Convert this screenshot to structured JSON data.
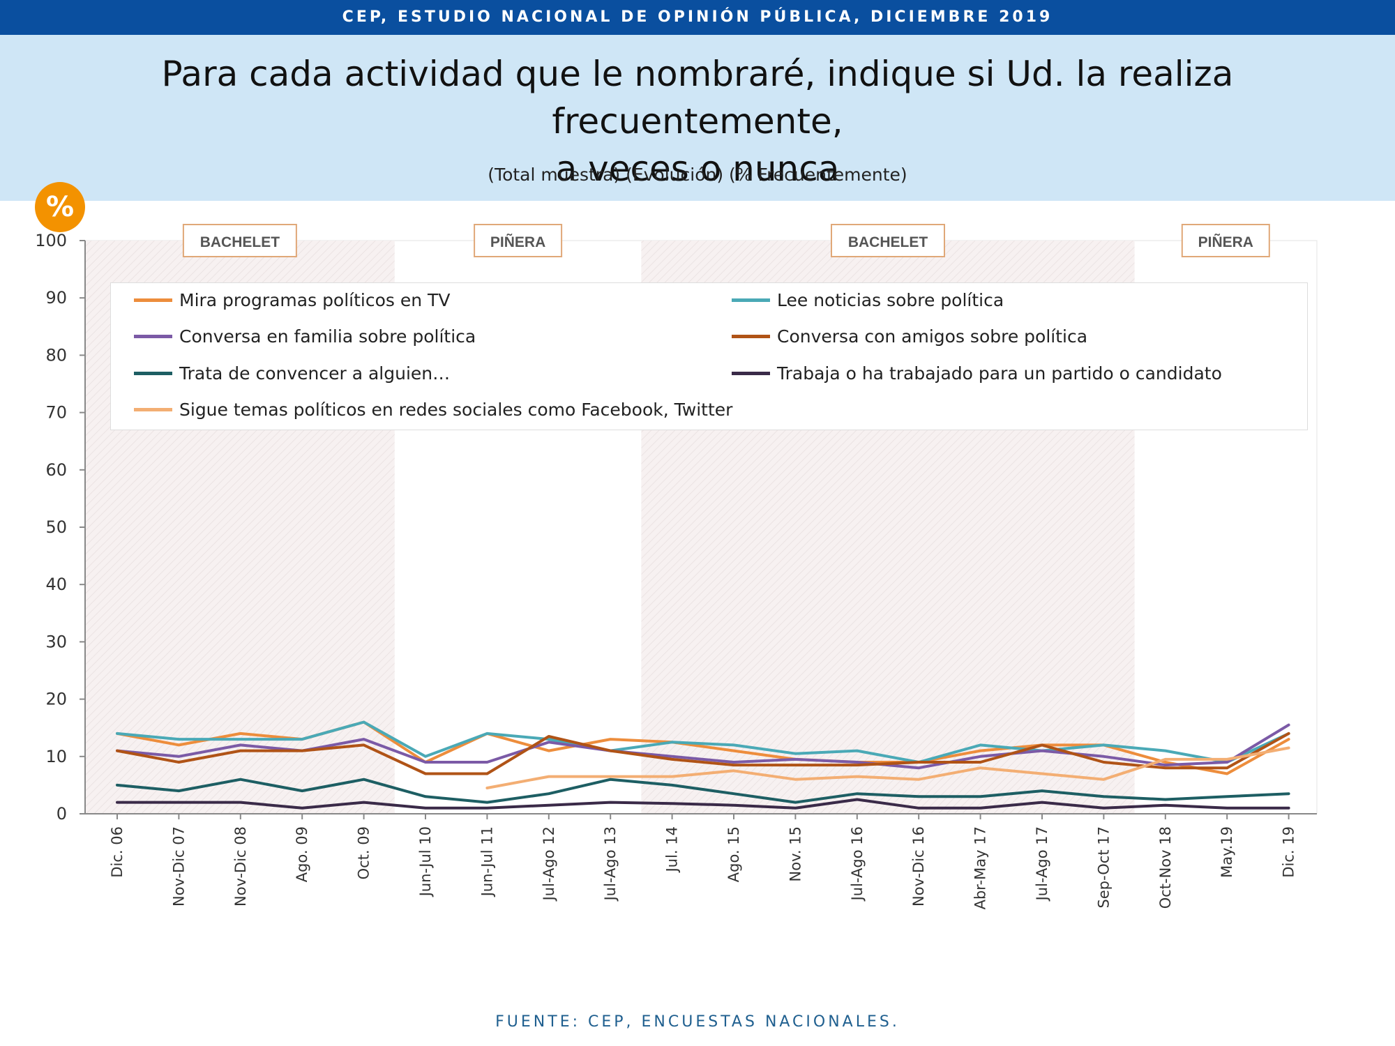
{
  "header": {
    "banner": "CEP, ESTUDIO NACIONAL DE OPINIÓN PÚBLICA, DICIEMBRE 2019",
    "title_line1": "Para cada actividad que le nombraré, indique si Ud. la realiza frecuentemente,",
    "title_line2": "a veces o nunca",
    "subtitle": "(Total muestra) (Evolución) (% Frecuentemente)",
    "badge": "%"
  },
  "footer": {
    "source": "FUENTE: CEP, ENCUESTAS NACIONALES."
  },
  "chart_data": {
    "type": "line",
    "title": "Para cada actividad que le nombraré, indique si Ud. la realiza frecuentemente, a veces o nunca",
    "subtitle": "(Total muestra) (Evolución) (% Frecuentemente)",
    "ylim": [
      0,
      100
    ],
    "yticks": [
      0,
      10,
      20,
      30,
      40,
      50,
      60,
      70,
      80,
      90,
      100
    ],
    "grid": false,
    "legend_position": "top",
    "categories": [
      "Dic. 06",
      "Nov-Dic 07",
      "Nov-Dic 08",
      "Ago. 09",
      "Oct. 09",
      "Jun-Jul 10",
      "Jun-Jul 11",
      "Jul-Ago 12",
      "Jul-Ago 13",
      "Jul. 14",
      "Ago. 15",
      "Nov. 15",
      "Jul-Ago 16",
      "Nov-Dic 16",
      "Abr-May 17",
      "Jul-Ago 17",
      "Sep-Oct 17",
      "Oct-Nov 18",
      "May.19",
      "Dic. 19"
    ],
    "periods": [
      {
        "label": "BACHELET",
        "from": 0,
        "to": 4,
        "shaded": true
      },
      {
        "label": "PIÑERA",
        "from": 5,
        "to": 8,
        "shaded": false
      },
      {
        "label": "BACHELET",
        "from": 9,
        "to": 16,
        "shaded": true
      },
      {
        "label": "PIÑERA",
        "from": 17,
        "to": 19,
        "shaded": false
      }
    ],
    "series": [
      {
        "name": "Mira programas políticos en TV",
        "color": "#ed8d3c",
        "values": [
          14,
          12,
          14,
          13,
          16,
          9,
          14,
          11,
          13,
          12.5,
          11,
          9.5,
          9,
          9,
          11,
          12,
          12,
          9,
          7,
          13
        ]
      },
      {
        "name": "Lee noticias sobre política",
        "color": "#4aa9b6",
        "values": [
          14,
          13,
          13,
          13,
          16,
          10,
          14,
          13,
          11,
          12.5,
          12,
          10.5,
          11,
          9,
          12,
          11,
          12,
          11,
          9,
          14
        ]
      },
      {
        "name": "Conversa en familia sobre política",
        "color": "#7b5aa6",
        "values": [
          11,
          10,
          12,
          11,
          13,
          9,
          9,
          12.5,
          11,
          10,
          9,
          9.5,
          9,
          8,
          10,
          11,
          10,
          8.5,
          9,
          15.5
        ]
      },
      {
        "name": "Conversa con amigos sobre política",
        "color": "#b05316",
        "values": [
          11,
          9,
          11,
          11,
          12,
          7,
          7,
          13.5,
          11,
          9.5,
          8.5,
          8.5,
          8.5,
          9,
          9,
          12,
          9,
          8,
          8,
          14
        ]
      },
      {
        "name": "Trata de convencer a alguien…",
        "color": "#1d5e63",
        "values": [
          5,
          4,
          6,
          4,
          6,
          3,
          2,
          3.5,
          6,
          5,
          3.5,
          2,
          3.5,
          3,
          3,
          4,
          3,
          2.5,
          3,
          3.5
        ]
      },
      {
        "name": "Trabaja o ha trabajado para un partido o candidato",
        "color": "#3a2a48",
        "values": [
          2,
          2,
          2,
          1,
          2,
          1,
          1,
          1.5,
          2,
          1.8,
          1.5,
          1,
          2.5,
          1,
          1,
          2,
          1,
          1.5,
          1,
          1
        ]
      },
      {
        "name": "Sigue temas políticos en redes sociales como Facebook, Twitter",
        "color": "#f3ae73",
        "values": [
          null,
          null,
          null,
          null,
          null,
          null,
          4.5,
          6.5,
          6.5,
          6.5,
          7.5,
          6,
          6.5,
          6,
          8,
          7,
          6,
          9.5,
          9.5,
          11.5
        ]
      }
    ]
  }
}
